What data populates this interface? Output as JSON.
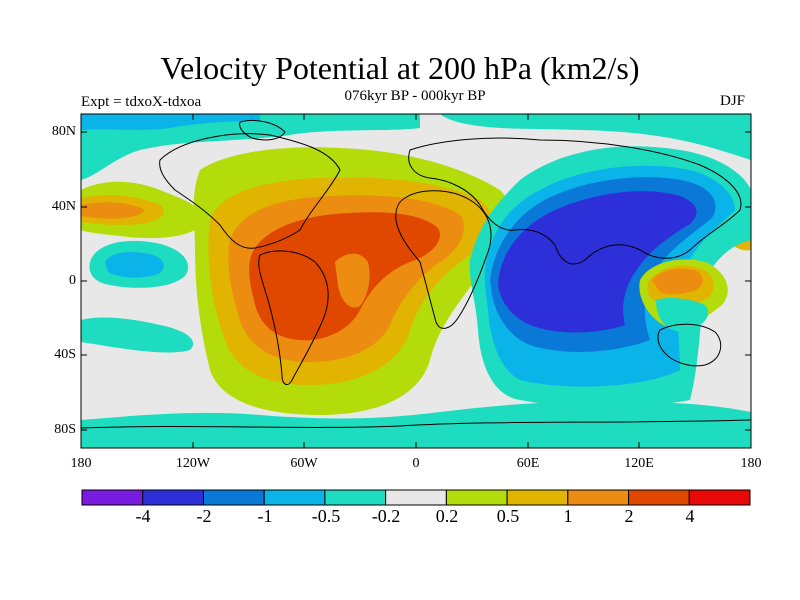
{
  "title": "Velocity Potential at 200 hPa (km2/s)",
  "subtitle": "076kyr BP - 000kyr BP",
  "left_label": "Expt = tdxoX-tdxoa",
  "right_label": "DJF",
  "y_ticks": [
    "80N",
    "40N",
    "0",
    "40S",
    "80S"
  ],
  "x_ticks": [
    "180",
    "120W",
    "60W",
    "0",
    "60E",
    "120E",
    "180"
  ],
  "colorbar": {
    "labels": [
      "-4",
      "-2",
      "-1",
      "-0.5",
      "-0.2",
      "0.2",
      "0.5",
      "1",
      "2",
      "4"
    ],
    "colors": [
      "#7a1be0",
      "#2d2fd8",
      "#0a78d6",
      "#0ab4e8",
      "#1edcc0",
      "#e8e8e8",
      "#b4dc0a",
      "#e0b400",
      "#ec8c10",
      "#e04800",
      "#e80808"
    ]
  }
}
